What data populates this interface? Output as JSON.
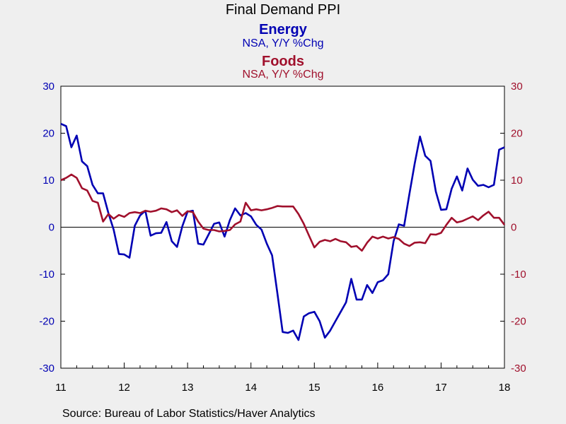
{
  "chart_data": {
    "type": "line",
    "title": "Final Demand PPI",
    "series": [
      {
        "name": "Energy",
        "subtitle": "NSA, Y/Y %Chg",
        "color": "#0000b3",
        "axis": "left",
        "values": [
          22,
          21.5,
          17,
          19.5,
          14,
          13,
          9,
          7.2,
          7.2,
          3,
          -0.5,
          -5.7,
          -5.8,
          -6.5,
          0.3,
          2.5,
          3.5,
          -1.8,
          -1.3,
          -1.2,
          1.1,
          -3,
          -4.2,
          0.2,
          3.3,
          3.5,
          -3.5,
          -3.7,
          -1.5,
          0.7,
          1,
          -2,
          1.5,
          4,
          2.5,
          3,
          2.3,
          0.5,
          -0.5,
          -3.5,
          -6,
          -14,
          -22.3,
          -22.5,
          -22,
          -24,
          -19,
          -18.3,
          -18,
          -20,
          -23.5,
          -22,
          -20,
          -18,
          -16,
          -11,
          -15.4,
          -15.4,
          -12.3,
          -14,
          -11.7,
          -11.3,
          -10,
          -3,
          0.6,
          0.3,
          7,
          13.5,
          19.3,
          15.2,
          14.1,
          7.6,
          3.7,
          3.8,
          8.2,
          10.8,
          7.8,
          12.5,
          10.1,
          8.8,
          9,
          8.5,
          9,
          16.5,
          17
        ]
      },
      {
        "name": "Foods",
        "subtitle": "NSA, Y/Y %Chg",
        "color": "#a0102c",
        "axis": "right",
        "values": [
          10,
          10.5,
          11.2,
          10.5,
          8.3,
          7.8,
          5.6,
          5.2,
          1.2,
          2.8,
          1.8,
          2.6,
          2.2,
          3,
          3.2,
          3,
          3.5,
          3.3,
          3.5,
          4,
          3.8,
          3.2,
          3.6,
          2.4,
          3.4,
          3.2,
          1.2,
          -0.3,
          -0.6,
          -0.6,
          -0.9,
          -0.8,
          -0.6,
          0.6,
          1.2,
          5.2,
          3.6,
          3.8,
          3.6,
          3.8,
          4.1,
          4.5,
          4.4,
          4.4,
          4.4,
          2.8,
          0.7,
          -1.8,
          -4.3,
          -3.1,
          -2.7,
          -3,
          -2.5,
          -3,
          -3.2,
          -4.2,
          -4,
          -5,
          -3.3,
          -2,
          -2.4,
          -2,
          -2.4,
          -2.1,
          -2.5,
          -3.5,
          -4,
          -3.3,
          -3.2,
          -3.4,
          -1.5,
          -1.6,
          -1.2,
          0.5,
          2,
          1,
          1.3,
          1.8,
          2.3,
          1.5,
          2.5,
          3.3,
          2,
          2,
          0.5
        ]
      }
    ],
    "x_start": "2011-01",
    "x_end": "2018-01",
    "x_tick_labels": [
      "11",
      "12",
      "13",
      "14",
      "15",
      "16",
      "17",
      "18"
    ],
    "left_axis": {
      "ylim": [
        -30,
        30
      ],
      "ticks": [
        "30",
        "20",
        "10",
        "0",
        "-10",
        "-20",
        "-30"
      ],
      "color": "#0000b3"
    },
    "right_axis": {
      "ylim": [
        -30,
        30
      ],
      "ticks": [
        "30",
        "20",
        "10",
        "0",
        "-10",
        "-20",
        "-30"
      ],
      "color": "#a0102c"
    },
    "zero_line": true,
    "grid": false,
    "source": "Source:  Bureau of Labor Statistics/Haver Analytics"
  }
}
